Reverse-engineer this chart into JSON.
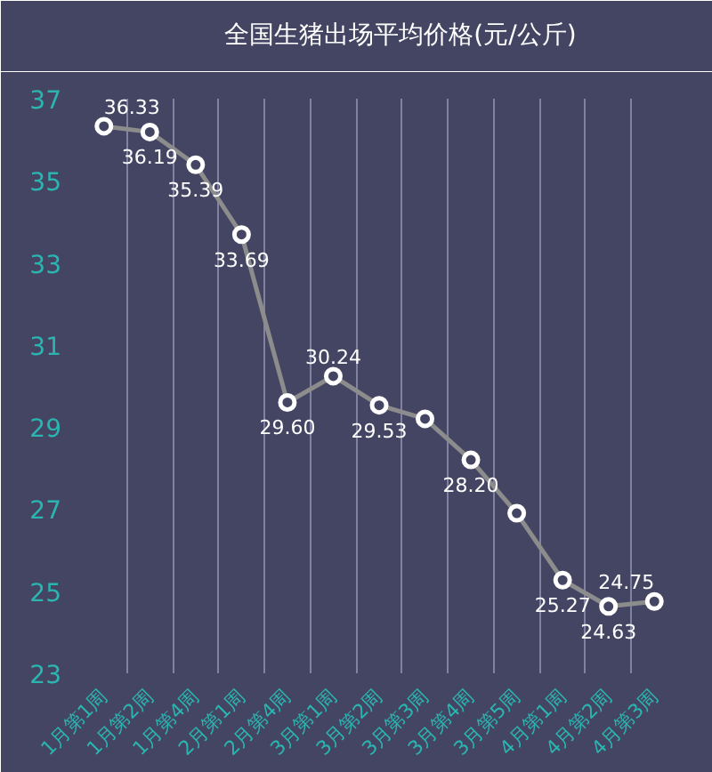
{
  "chart_data": {
    "type": "line",
    "categories": [
      "1月第1周",
      "1月第2周",
      "1月第4周",
      "2月第1周",
      "2月第4周",
      "3月第1周",
      "3月第2周",
      "3月第3周",
      "3月第4周",
      "3月第5周",
      "4月第1周",
      "4月第2周",
      "4月第3周"
    ],
    "series": [
      {
        "name": "全国生猪出场平均价格(元/公斤)",
        "color": "#8c8c8c",
        "values": [
          36.33,
          36.19,
          35.39,
          33.69,
          29.6,
          30.24,
          29.53,
          29.2,
          28.2,
          26.9,
          25.27,
          24.63,
          24.75
        ],
        "value_labels": [
          "36.33",
          "36.19",
          "35.39",
          "33.69",
          "29.60",
          "30.24",
          "29.53",
          null,
          "28.20",
          null,
          "25.27",
          "24.63",
          "24.75"
        ]
      }
    ],
    "ylim": [
      23,
      37
    ],
    "yticks": [
      23,
      25,
      27,
      29,
      31,
      33,
      35,
      37
    ],
    "grid": "x",
    "legend": "top",
    "marker": "circle",
    "line_style": "solid"
  }
}
